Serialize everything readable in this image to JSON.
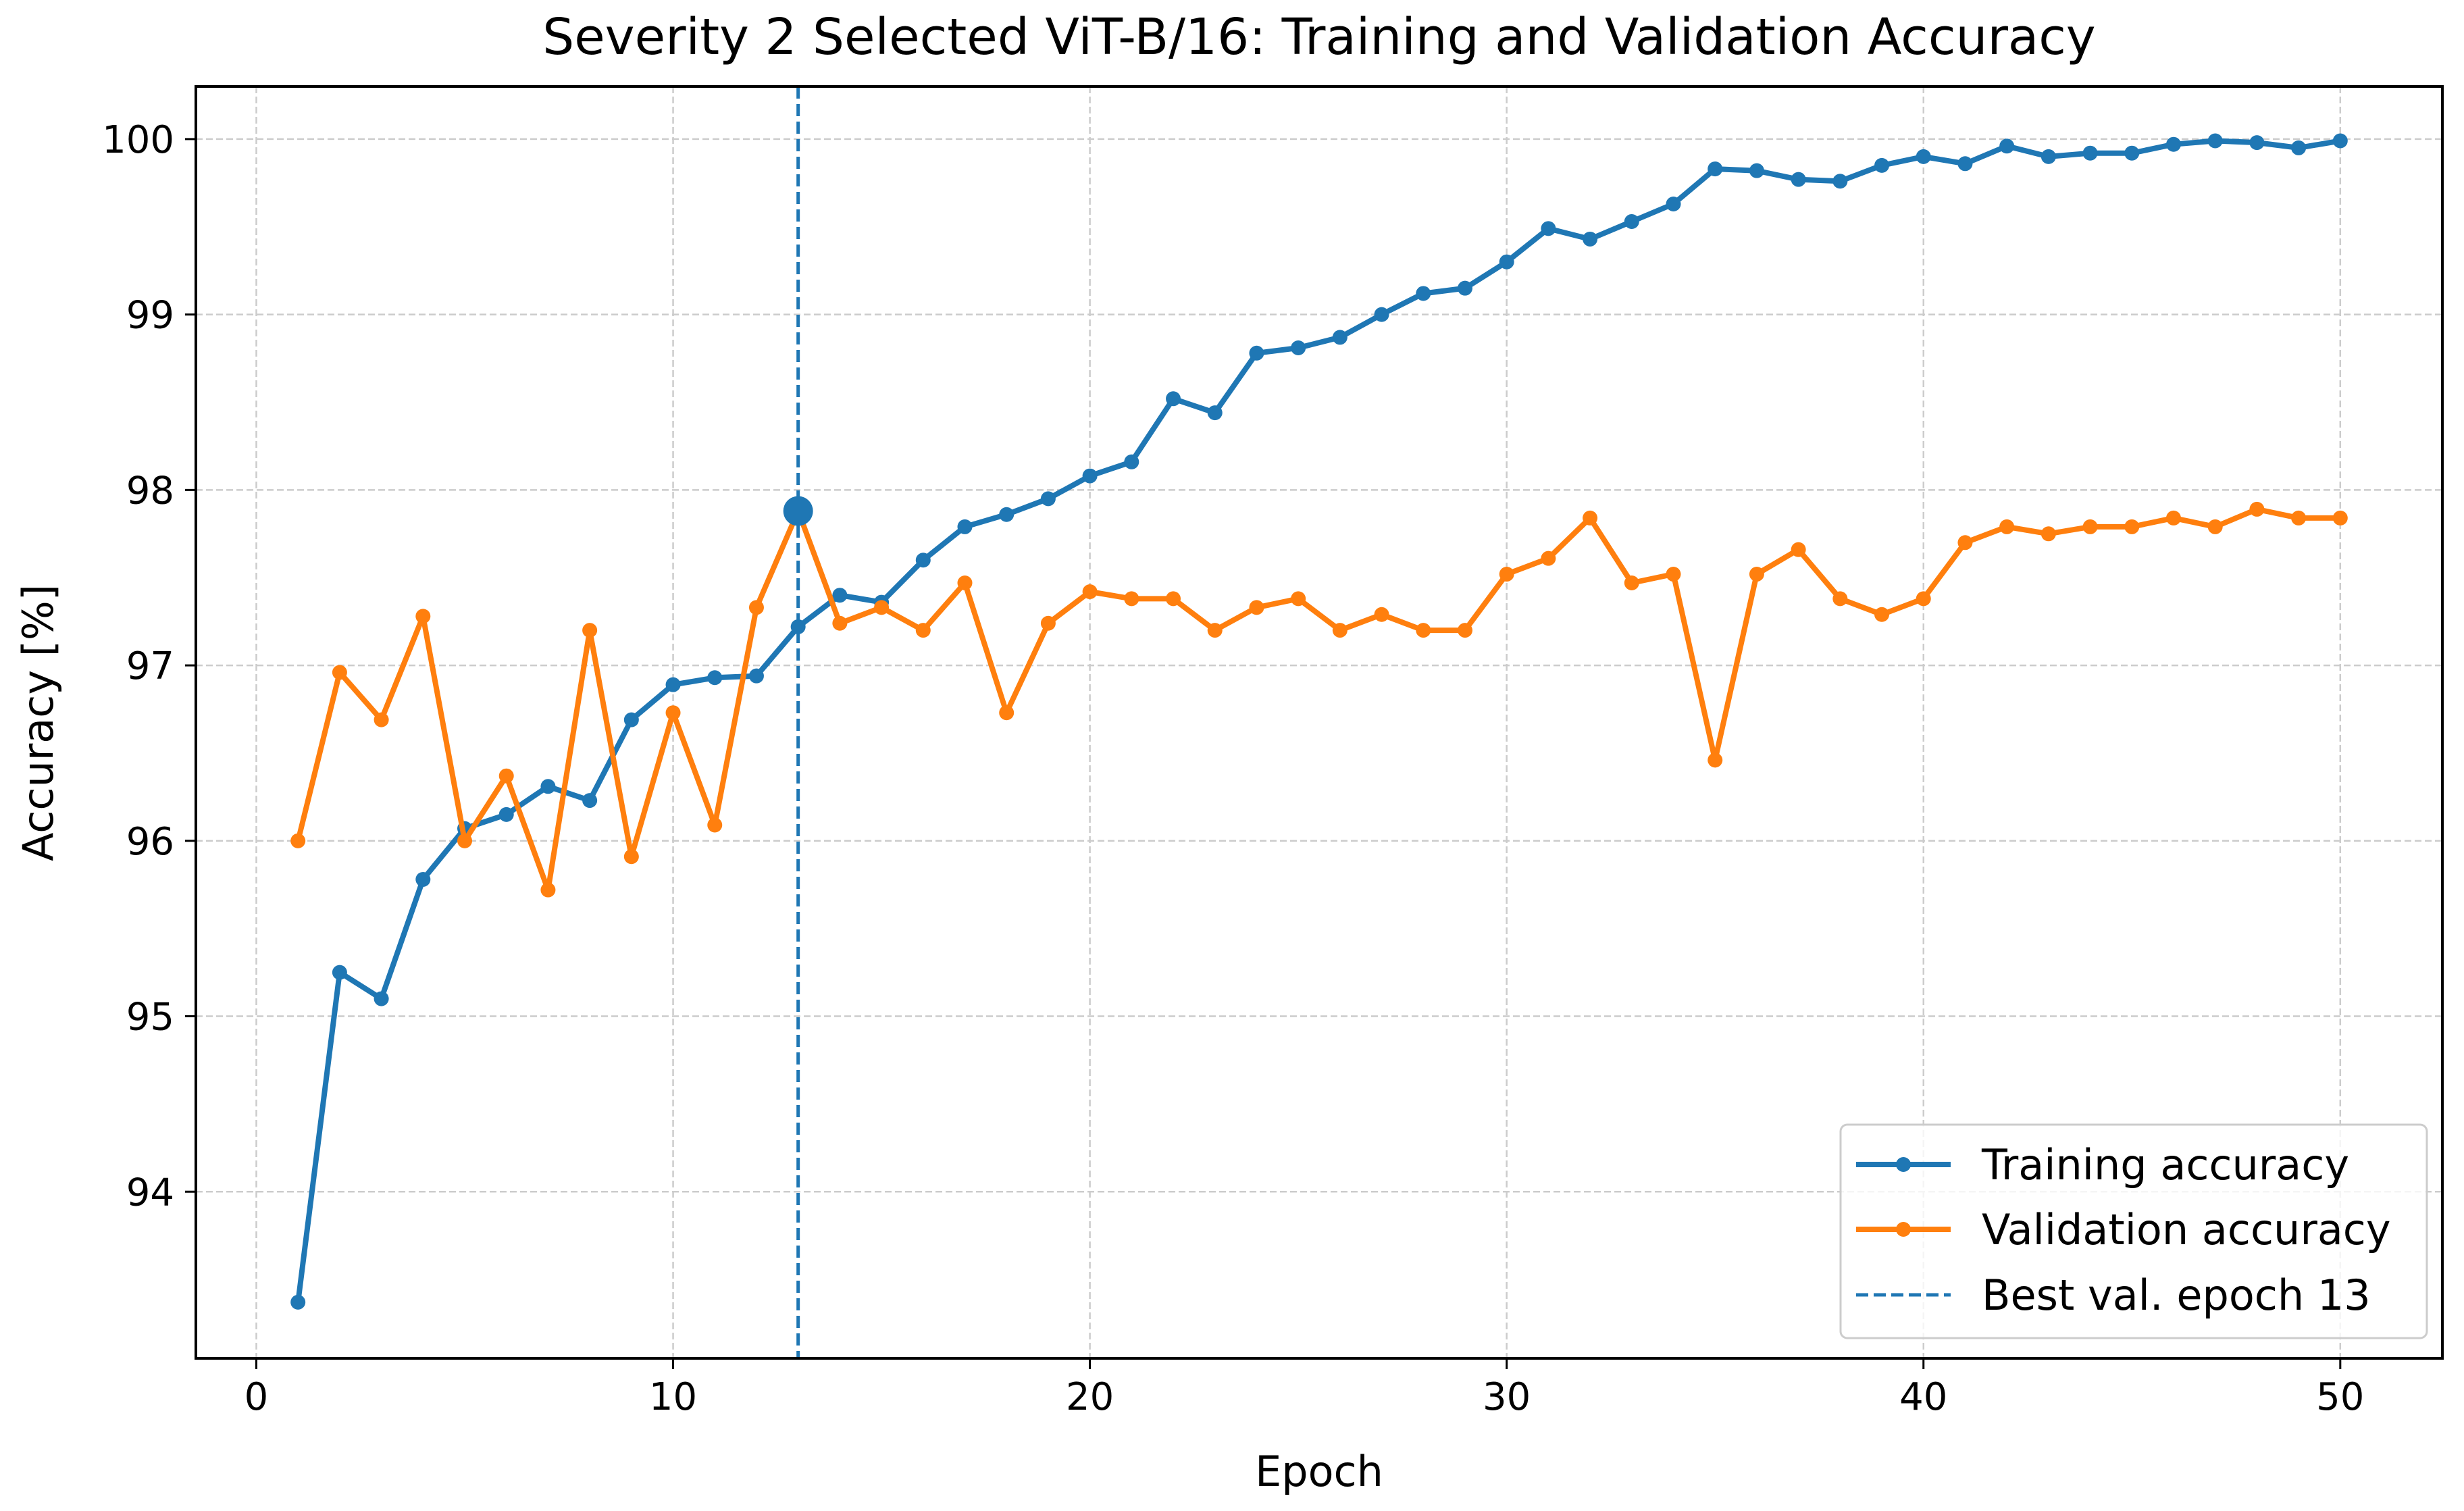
{
  "chart_data": {
    "type": "line",
    "title": "Severity 2 Selected ViT-B/16: Training and Validation Accuracy",
    "xlabel": "Epoch",
    "ylabel": "Accuracy [%]",
    "xlim": [
      -1.45,
      52.45
    ],
    "ylim": [
      93.05,
      100.3
    ],
    "xticks": [
      0,
      10,
      20,
      30,
      40,
      50
    ],
    "yticks": [
      94,
      95,
      96,
      97,
      98,
      99,
      100
    ],
    "grid": true,
    "legend_position": "lower right",
    "x": [
      1,
      2,
      3,
      4,
      5,
      6,
      7,
      8,
      9,
      10,
      11,
      12,
      13,
      14,
      15,
      16,
      17,
      18,
      19,
      20,
      21,
      22,
      23,
      24,
      25,
      26,
      27,
      28,
      29,
      30,
      31,
      32,
      33,
      34,
      35,
      36,
      37,
      38,
      39,
      40,
      41,
      42,
      43,
      44,
      45,
      46,
      47,
      48,
      49,
      50
    ],
    "series": [
      {
        "name": "Training accuracy",
        "color": "#1f77b4",
        "values": [
          93.37,
          95.25,
          95.1,
          95.78,
          96.07,
          96.15,
          96.31,
          96.23,
          96.69,
          96.89,
          96.93,
          96.94,
          97.22,
          97.4,
          97.36,
          97.6,
          97.79,
          97.86,
          97.95,
          98.08,
          98.16,
          98.52,
          98.44,
          98.78,
          98.81,
          98.87,
          99.0,
          99.12,
          99.15,
          99.3,
          99.49,
          99.43,
          99.53,
          99.63,
          99.83,
          99.82,
          99.77,
          99.76,
          99.85,
          99.9,
          99.86,
          99.96,
          99.9,
          99.92,
          99.92,
          99.97,
          99.99,
          99.98,
          99.95,
          99.99
        ]
      },
      {
        "name": "Validation accuracy",
        "color": "#ff7f0e",
        "values": [
          96.0,
          96.96,
          96.69,
          97.28,
          96.0,
          96.37,
          95.72,
          97.2,
          95.91,
          96.73,
          96.09,
          97.33,
          97.88,
          97.24,
          97.33,
          97.2,
          97.47,
          96.73,
          97.24,
          97.42,
          97.38,
          97.38,
          97.2,
          97.33,
          97.38,
          97.2,
          97.29,
          97.2,
          97.2,
          97.52,
          97.61,
          97.84,
          97.47,
          97.52,
          96.46,
          97.52,
          97.66,
          97.38,
          97.29,
          97.38,
          97.7,
          97.79,
          97.75,
          97.79,
          97.79,
          97.84,
          97.79,
          97.89,
          97.84,
          97.84
        ]
      }
    ],
    "best_epoch_line": {
      "label": "Best val. epoch 13",
      "x": 13,
      "color": "#1f77b4",
      "marker_y": 97.88
    }
  }
}
